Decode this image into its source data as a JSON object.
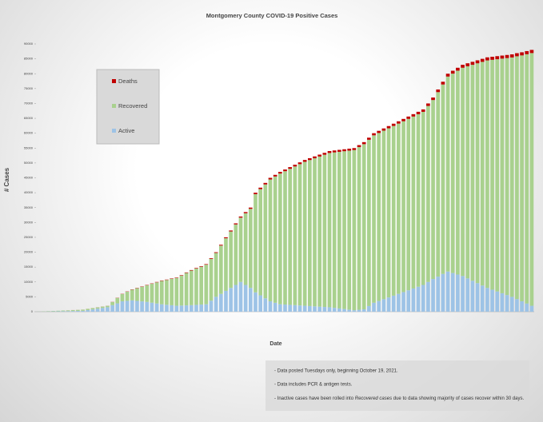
{
  "chart_data": {
    "type": "stacked_bar",
    "title": "Montgomery County COVID-19 Positive Cases",
    "x_label": "Date",
    "y_label": "# Cases",
    "categories": [
      null,
      null,
      null,
      null,
      null,
      null,
      null,
      null,
      null,
      null,
      null,
      null,
      null,
      null,
      null,
      null,
      null,
      null,
      null,
      null,
      null,
      null,
      null,
      null,
      null,
      null,
      null,
      null,
      null,
      null,
      null,
      null,
      null,
      null,
      null,
      null,
      null,
      null,
      null,
      null,
      null,
      null,
      null,
      null,
      null,
      null,
      null,
      null,
      null,
      null,
      null,
      null,
      null,
      null,
      null,
      null,
      null,
      null,
      null,
      null,
      null,
      null,
      null,
      null,
      null,
      null,
      null,
      null,
      null,
      null,
      null,
      null,
      null,
      null,
      null,
      null,
      null,
      null,
      null,
      null,
      null,
      null,
      null,
      null,
      null,
      null,
      null,
      null,
      null,
      null,
      null,
      null,
      null,
      null,
      null,
      null,
      null,
      null,
      null,
      null,
      null
    ],
    "series": [
      {
        "name": "Active",
        "color": "#9dc3e6",
        "values": [
          20,
          50,
          80,
          110,
          140,
          170,
          200,
          230,
          270,
          300,
          540,
          780,
          1020,
          1260,
          1500,
          2200,
          2800,
          3500,
          3650,
          3800,
          3630,
          3470,
          3300,
          3030,
          2770,
          2500,
          2330,
          2170,
          2000,
          2070,
          2130,
          2200,
          2300,
          2400,
          2500,
          3700,
          5000,
          6000,
          7000,
          8000,
          9000,
          10000,
          9000,
          8000,
          6500,
          5500,
          4500,
          3500,
          3000,
          2500,
          2400,
          2300,
          2200,
          2100,
          2000,
          1900,
          1800,
          1700,
          1600,
          1500,
          1300,
          1100,
          900,
          700,
          500,
          650,
          800,
          1900,
          3000,
          3600,
          4200,
          4800,
          5400,
          6000,
          6600,
          7200,
          7800,
          8400,
          9000,
          10000,
          11000,
          11800,
          12700,
          13500,
          13000,
          12500,
          12000,
          11200,
          10400,
          9600,
          8800,
          8000,
          7400,
          6800,
          6200,
          5600,
          5000,
          4250,
          3500,
          2750,
          2000
        ]
      },
      {
        "name": "Recovered",
        "color": "#a9d18e",
        "values": [
          30,
          70,
          110,
          150,
          190,
          230,
          240,
          310,
          340,
          390,
          410,
          430,
          440,
          460,
          480,
          1060,
          1840,
          2430,
          3070,
          3610,
          4270,
          4930,
          5590,
          6360,
          7110,
          7870,
          8340,
          8900,
          9360,
          10080,
          10910,
          11630,
          12220,
          12720,
          13310,
          14080,
          14760,
          16230,
          17700,
          18970,
          20340,
          21620,
          24100,
          26580,
          33020,
          35700,
          38280,
          40960,
          42450,
          43940,
          44830,
          45720,
          46610,
          47500,
          48390,
          49080,
          49770,
          50470,
          51160,
          51850,
          52250,
          52650,
          53040,
          53440,
          53840,
          54680,
          55520,
          55900,
          56280,
          56470,
          56660,
          56850,
          57040,
          57230,
          57420,
          57610,
          57800,
          57990,
          58180,
          59160,
          60140,
          62000,
          63670,
          65540,
          67030,
          68520,
          70000,
          71300,
          72590,
          73890,
          75180,
          76470,
          77270,
          78070,
          78870,
          79660,
          80460,
          81610,
          82650,
          83800,
          84940
        ]
      },
      {
        "name": "Deaths",
        "color": "#c00000",
        "values": [
          0,
          0,
          0,
          0,
          0,
          0,
          10,
          10,
          10,
          10,
          10,
          10,
          20,
          20,
          20,
          40,
          60,
          70,
          80,
          90,
          100,
          100,
          110,
          110,
          120,
          130,
          130,
          130,
          140,
          150,
          160,
          170,
          180,
          180,
          190,
          220,
          240,
          270,
          300,
          330,
          360,
          380,
          400,
          420,
          480,
          500,
          520,
          540,
          550,
          560,
          570,
          580,
          590,
          600,
          610,
          620,
          630,
          630,
          640,
          650,
          650,
          650,
          660,
          660,
          660,
          670,
          680,
          700,
          720,
          730,
          740,
          750,
          760,
          770,
          780,
          790,
          800,
          810,
          820,
          840,
          860,
          900,
          930,
          960,
          970,
          980,
          1000,
          1000,
          1010,
          1010,
          1020,
          1030,
          1030,
          1030,
          1030,
          1040,
          1040,
          1040,
          1050,
          1050,
          1060
        ]
      }
    ],
    "ylim": [
      0,
      90000
    ],
    "yticks": [
      0,
      5000,
      10000,
      15000,
      20000,
      25000,
      30000,
      35000,
      40000,
      45000,
      50000,
      55000,
      60000,
      65000,
      70000,
      75000,
      80000,
      85000,
      90000
    ],
    "legend": "upper left",
    "notes": [
      "- Data posted Tuesdays only, beginning October 19, 2021.",
      "- Data includes PCR & antigen tests."
    ],
    "note_italic": {
      "before": "- Inactive cases have been rolled into ",
      "em": "Recovered cases",
      "after": "  due to data showing majority of cases recover within 30 days."
    }
  }
}
